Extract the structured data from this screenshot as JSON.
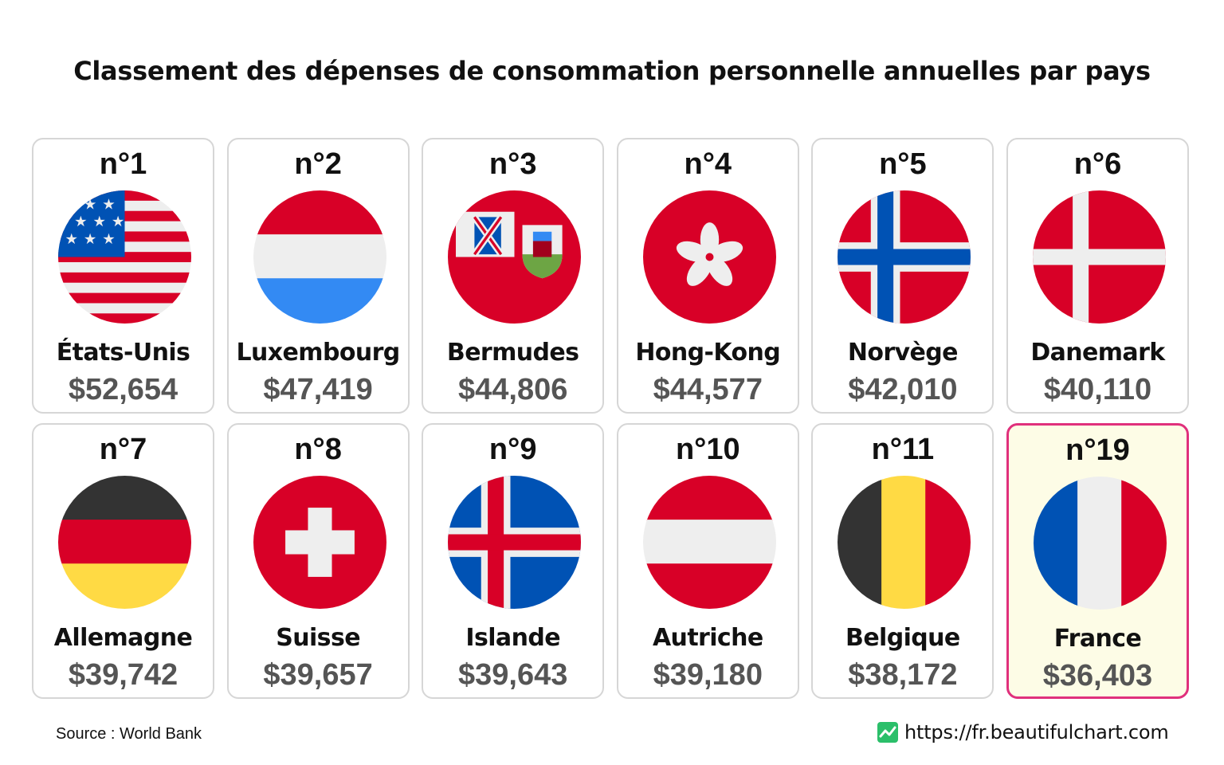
{
  "title": "Classement des dépenses de consommation personnelle annuelles par pays",
  "chart_data": {
    "type": "table",
    "title": "Classement des dépenses de consommation personnelle annuelles par pays",
    "columns": [
      "rank",
      "country",
      "value"
    ],
    "unit": "USD",
    "items": [
      {
        "rank": "n°1",
        "country": "États-Unis",
        "value": 52654,
        "label": "$52,654",
        "flag": "usa-flag-icon"
      },
      {
        "rank": "n°2",
        "country": "Luxembourg",
        "value": 47419,
        "label": "$47,419",
        "flag": "luxembourg-flag-icon"
      },
      {
        "rank": "n°3",
        "country": "Bermudes",
        "value": 44806,
        "label": "$44,806",
        "flag": "bermuda-flag-icon"
      },
      {
        "rank": "n°4",
        "country": "Hong-Kong",
        "value": 44577,
        "label": "$44,577",
        "flag": "hong-kong-flag-icon"
      },
      {
        "rank": "n°5",
        "country": "Norvège",
        "value": 42010,
        "label": "$42,010",
        "flag": "norway-flag-icon"
      },
      {
        "rank": "n°6",
        "country": "Danemark",
        "value": 40110,
        "label": "$40,110",
        "flag": "denmark-flag-icon"
      },
      {
        "rank": "n°7",
        "country": "Allemagne",
        "value": 39742,
        "label": "$39,742",
        "flag": "germany-flag-icon"
      },
      {
        "rank": "n°8",
        "country": "Suisse",
        "value": 39657,
        "label": "$39,657",
        "flag": "switzerland-flag-icon"
      },
      {
        "rank": "n°9",
        "country": "Islande",
        "value": 39643,
        "label": "$39,643",
        "flag": "iceland-flag-icon"
      },
      {
        "rank": "n°10",
        "country": "Autriche",
        "value": 39180,
        "label": "$39,180",
        "flag": "austria-flag-icon"
      },
      {
        "rank": "n°11",
        "country": "Belgique",
        "value": 38172,
        "label": "$38,172",
        "flag": "belgium-flag-icon"
      },
      {
        "rank": "n°19",
        "country": "France",
        "value": 36403,
        "label": "$36,403",
        "flag": "france-flag-icon",
        "highlighted": true
      }
    ]
  },
  "footer": {
    "source": "Source : World Bank",
    "url": "https://fr.beautifulchart.com"
  },
  "colors": {
    "highlight_border": "#e0307c",
    "highlight_background": "#fdfce6",
    "card_border": "#d6d6d6",
    "value_text": "#555555",
    "logo_green": "#2bbf6a"
  }
}
